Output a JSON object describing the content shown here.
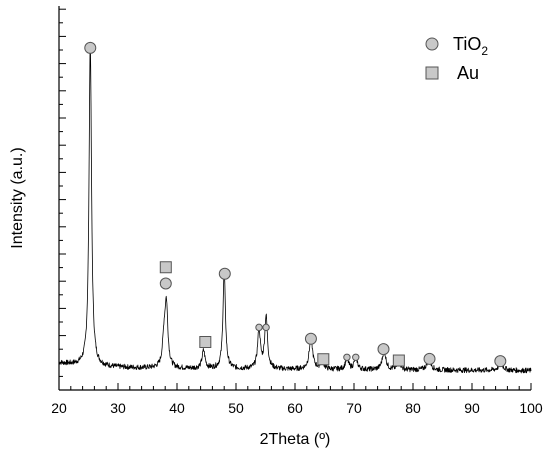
{
  "chart_data": {
    "type": "line",
    "xlabel": "2Theta (º)",
    "ylabel": "Intensity (a.u.)",
    "xlim": [
      20,
      100
    ],
    "xticks": [
      20,
      30,
      40,
      50,
      60,
      70,
      80,
      90,
      100
    ],
    "y_tick_labels": false,
    "baseline": 4.5,
    "peaks": [
      {
        "x": 25.3,
        "h": 100,
        "w": 0.25
      },
      {
        "x": 37.8,
        "h": 8,
        "w": 0.3
      },
      {
        "x": 38.2,
        "h": 19,
        "w": 0.3
      },
      {
        "x": 44.5,
        "h": 5.5,
        "w": 0.3
      },
      {
        "x": 48.0,
        "h": 30,
        "w": 0.25
      },
      {
        "x": 53.9,
        "h": 12,
        "w": 0.28
      },
      {
        "x": 55.1,
        "h": 16,
        "w": 0.28
      },
      {
        "x": 62.7,
        "h": 9.5,
        "w": 0.35
      },
      {
        "x": 64.6,
        "h": 3,
        "w": 0.3
      },
      {
        "x": 68.8,
        "h": 3.5,
        "w": 0.3
      },
      {
        "x": 70.3,
        "h": 4,
        "w": 0.3
      },
      {
        "x": 75.1,
        "h": 6,
        "w": 0.35
      },
      {
        "x": 77.6,
        "h": 3,
        "w": 0.3
      },
      {
        "x": 82.7,
        "h": 3.5,
        "w": 0.4
      },
      {
        "x": 94.9,
        "h": 2,
        "w": 0.5
      }
    ],
    "markers": [
      {
        "type": "circle",
        "x": 25.3,
        "y": 103,
        "size": "large"
      },
      {
        "type": "square",
        "x": 38.1,
        "y": 35.5
      },
      {
        "type": "circle",
        "x": 38.1,
        "y": 30.5,
        "size": "large"
      },
      {
        "type": "square",
        "x": 44.8,
        "y": 12.5
      },
      {
        "type": "circle",
        "x": 48.1,
        "y": 33.5,
        "size": "large"
      },
      {
        "type": "circle",
        "x": 53.9,
        "y": 17,
        "size": "small"
      },
      {
        "type": "circle",
        "x": 55.1,
        "y": 17,
        "size": "small"
      },
      {
        "type": "circle",
        "x": 62.7,
        "y": 13.5,
        "size": "large"
      },
      {
        "type": "square",
        "x": 64.8,
        "y": 7.2
      },
      {
        "type": "circle",
        "x": 68.8,
        "y": 7.8,
        "size": "small"
      },
      {
        "type": "circle",
        "x": 70.3,
        "y": 7.8,
        "size": "small"
      },
      {
        "type": "circle",
        "x": 75.0,
        "y": 10.3,
        "size": "large"
      },
      {
        "type": "square",
        "x": 77.6,
        "y": 6.8
      },
      {
        "type": "circle",
        "x": 82.8,
        "y": 7.3,
        "size": "large"
      },
      {
        "type": "circle",
        "x": 94.8,
        "y": 6.6,
        "size": "large"
      }
    ],
    "legend": {
      "placement": "top-right",
      "entries": [
        {
          "marker": "circle",
          "label": "TiO",
          "subscript": "2"
        },
        {
          "marker": "square",
          "label": "Au"
        }
      ]
    },
    "marker_fill": "#c8c8c8",
    "marker_stroke": "#555555",
    "line_color": "#000000"
  }
}
